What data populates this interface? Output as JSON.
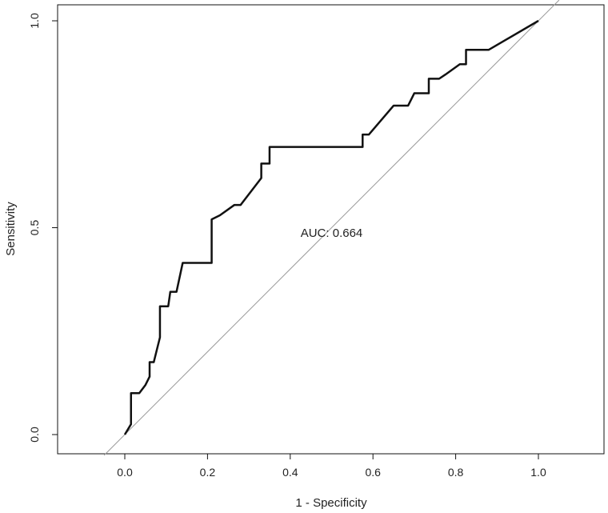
{
  "chart_data": {
    "type": "line",
    "title": "",
    "xlabel": "1 - Specificity",
    "ylabel": "Sensitivity",
    "xlim": [
      -0.16,
      1.16
    ],
    "ylim": [
      -0.04,
      1.04
    ],
    "x_ticks": [
      0.0,
      0.2,
      0.4,
      0.6,
      0.8,
      1.0
    ],
    "x_tick_labels": [
      "0.0",
      "0.2",
      "0.4",
      "0.6",
      "0.8",
      "1.0"
    ],
    "y_ticks": [
      0.0,
      0.5,
      1.0
    ],
    "y_tick_labels": [
      "0.0",
      "0.5",
      "1.0"
    ],
    "grid": false,
    "annotation": {
      "text": "AUC: 0.664",
      "x": 0.5,
      "y": 0.478
    },
    "reference_line": {
      "x": [
        -0.05,
        1.05
      ],
      "y": [
        -0.05,
        1.05
      ]
    },
    "series": [
      {
        "x": [
          0.0,
          0.015,
          0.015,
          0.035,
          0.05,
          0.06,
          0.06,
          0.07,
          0.085,
          0.085,
          0.105,
          0.11,
          0.125,
          0.14,
          0.21,
          0.21,
          0.23,
          0.265,
          0.28,
          0.33,
          0.33,
          0.35,
          0.35,
          0.575,
          0.575,
          0.59,
          0.65,
          0.685,
          0.7,
          0.735,
          0.735,
          0.76,
          0.775,
          0.81,
          0.825,
          0.825,
          0.88,
          1.0
        ],
        "y": [
          0.0,
          0.025,
          0.1,
          0.1,
          0.12,
          0.14,
          0.175,
          0.175,
          0.235,
          0.31,
          0.31,
          0.345,
          0.345,
          0.415,
          0.415,
          0.52,
          0.53,
          0.555,
          0.555,
          0.62,
          0.655,
          0.655,
          0.695,
          0.695,
          0.725,
          0.725,
          0.795,
          0.795,
          0.825,
          0.825,
          0.86,
          0.86,
          0.87,
          0.895,
          0.895,
          0.93,
          0.93,
          1.0
        ]
      }
    ]
  }
}
